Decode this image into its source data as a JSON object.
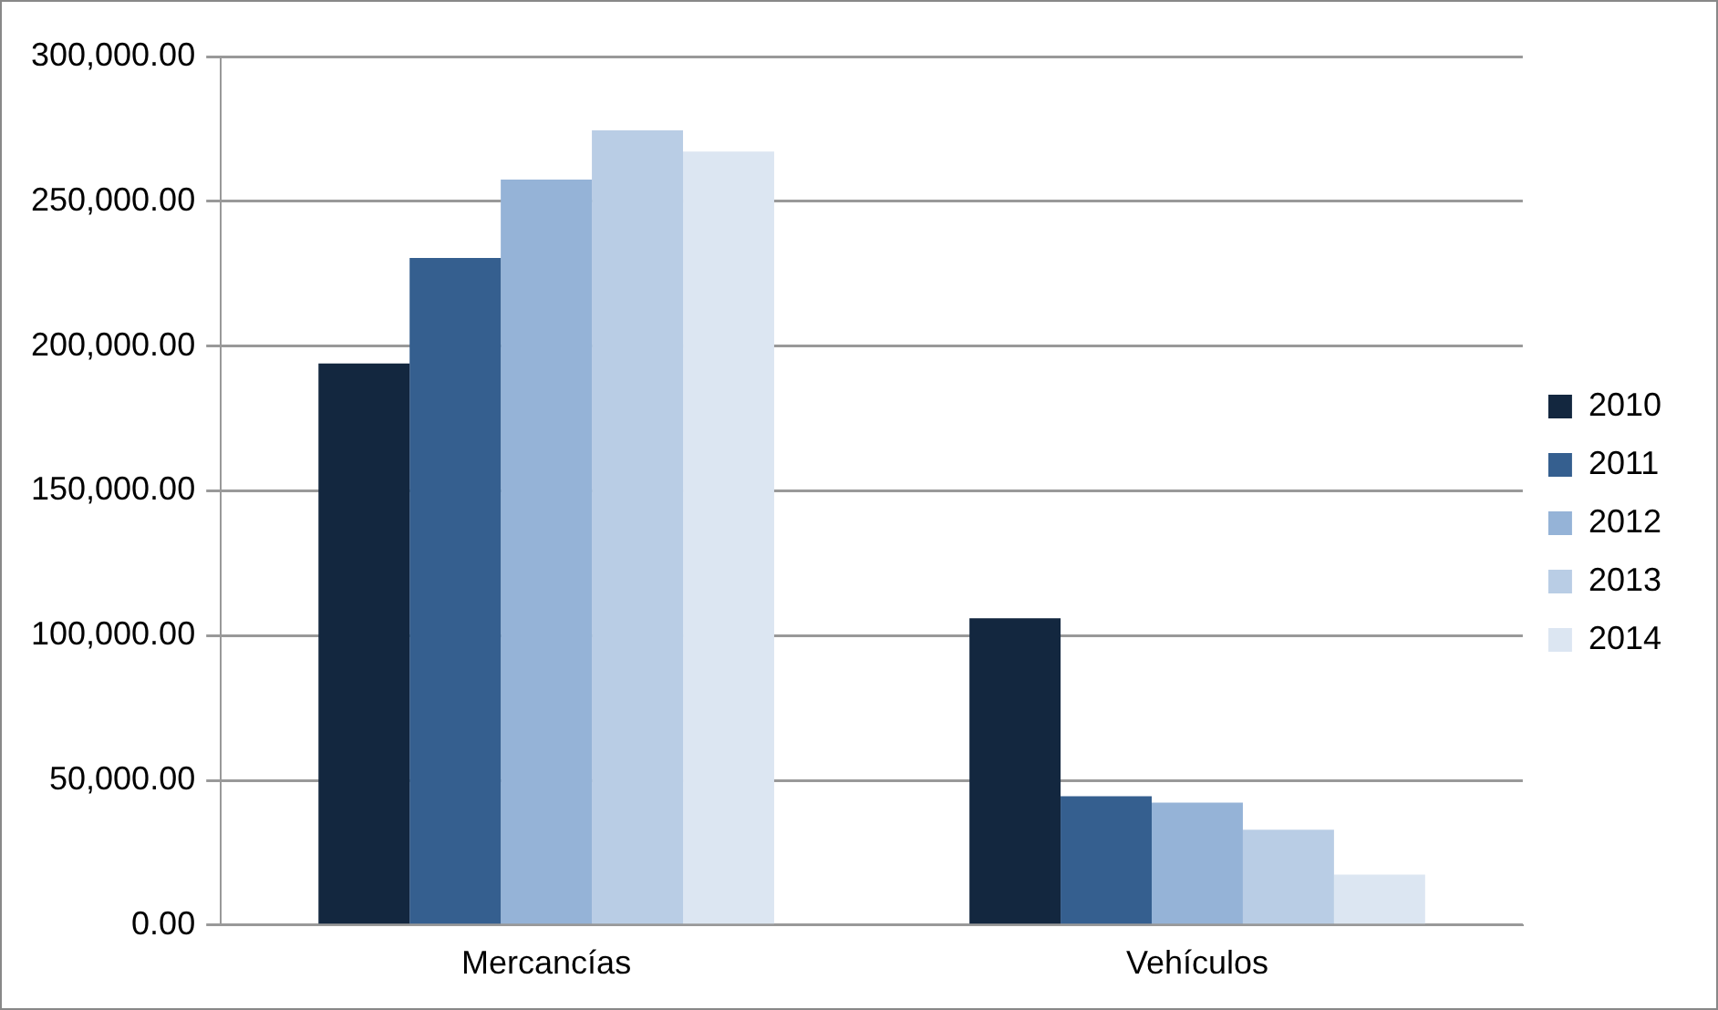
{
  "chart_data": {
    "type": "bar",
    "categories": [
      "Mercancías",
      "Vehículos"
    ],
    "series": [
      {
        "name": "2010",
        "color": "#13273f",
        "values": [
          194000,
          106000
        ]
      },
      {
        "name": "2011",
        "color": "#355f8f",
        "values": [
          230400,
          44500
        ]
      },
      {
        "name": "2012",
        "color": "#95b3d7",
        "values": [
          257500,
          42300
        ]
      },
      {
        "name": "2013",
        "color": "#b9cde5",
        "values": [
          274500,
          32900
        ]
      },
      {
        "name": "2014",
        "color": "#dce6f2",
        "values": [
          267200,
          17400
        ]
      }
    ],
    "ylim": [
      0,
      300000
    ],
    "yticks": [
      {
        "value": 0,
        "label": "0.00"
      },
      {
        "value": 50000,
        "label": "50,000.00"
      },
      {
        "value": 100000,
        "label": "100,000.00"
      },
      {
        "value": 150000,
        "label": "150,000.00"
      },
      {
        "value": 200000,
        "label": "200,000.00"
      },
      {
        "value": 250000,
        "label": "250,000.00"
      },
      {
        "value": 300000,
        "label": "300,000.00"
      }
    ],
    "grid": "y",
    "legend": "right"
  }
}
